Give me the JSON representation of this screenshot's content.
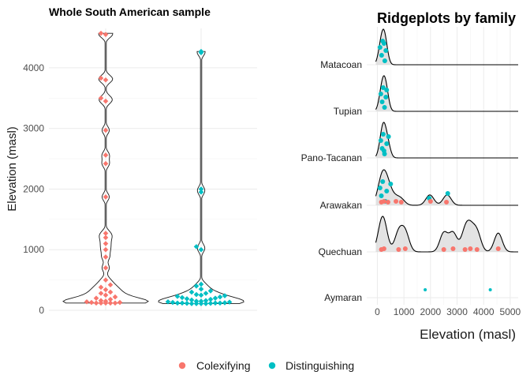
{
  "legend": {
    "items": [
      {
        "label": "Colexifying",
        "color": "#F8766D"
      },
      {
        "label": "Distinguishing",
        "color": "#00BFC4"
      }
    ]
  },
  "chart_data": [
    {
      "type": "violin",
      "title": "Whole South American sample",
      "xlabel": "",
      "ylabel": "Elevation (masl)",
      "ylim": [
        0,
        4650
      ],
      "yticks": [
        0,
        1000,
        2000,
        3000,
        4000
      ],
      "grid": true,
      "series": [
        {
          "name": "Colexifying",
          "color": "#F8766D",
          "points": [
            120,
            120,
            120,
            120,
            120,
            130,
            130,
            140,
            150,
            160,
            180,
            200,
            220,
            250,
            280,
            300,
            340,
            380,
            420,
            500,
            700,
            880,
            1000,
            1100,
            1200,
            1270,
            1870,
            2420,
            2560,
            2970,
            3450,
            3500,
            3800,
            3830,
            4550,
            4570
          ]
        },
        {
          "name": "Distinguishing",
          "color": "#00BFC4",
          "points": [
            110,
            110,
            110,
            110,
            115,
            115,
            120,
            120,
            120,
            120,
            125,
            130,
            135,
            140,
            150,
            150,
            160,
            170,
            180,
            190,
            200,
            210,
            220,
            230,
            240,
            250,
            260,
            280,
            300,
            320,
            350,
            400,
            430,
            1000,
            1050,
            1950,
            2000,
            4250,
            4270
          ]
        }
      ]
    },
    {
      "type": "ridgeline",
      "title": "Ridgeplots by family",
      "xlabel": "Elevation (masl)",
      "ylabel": "",
      "xlim": [
        -400,
        5300
      ],
      "xticks": [
        0,
        1000,
        2000,
        3000,
        4000,
        5000
      ],
      "grid": true,
      "families": [
        {
          "name": "Matacoan",
          "distinguishing": [
            100,
            160,
            200,
            280,
            320,
            250
          ],
          "colexifying": []
        },
        {
          "name": "Tupian",
          "distinguishing": [
            130,
            180,
            220,
            270,
            320,
            350
          ],
          "colexifying": []
        },
        {
          "name": "Pano-Tacanan",
          "distinguishing": [
            130,
            180,
            220,
            270,
            350,
            420,
            250
          ],
          "colexifying": []
        },
        {
          "name": "Arawakan",
          "distinguishing": [
            100,
            150,
            200,
            300,
            350,
            500,
            1950,
            2650
          ],
          "colexifying": [
            150,
            250,
            400,
            700,
            900,
            2000,
            2600
          ]
        },
        {
          "name": "Quechuan",
          "distinguishing": [],
          "colexifying": [
            150,
            250,
            800,
            1050,
            2500,
            2850,
            3300,
            3500,
            3750,
            4550
          ]
        },
        {
          "name": "Aymaran",
          "distinguishing": [
            1800,
            4250
          ],
          "colexifying": []
        }
      ]
    }
  ]
}
